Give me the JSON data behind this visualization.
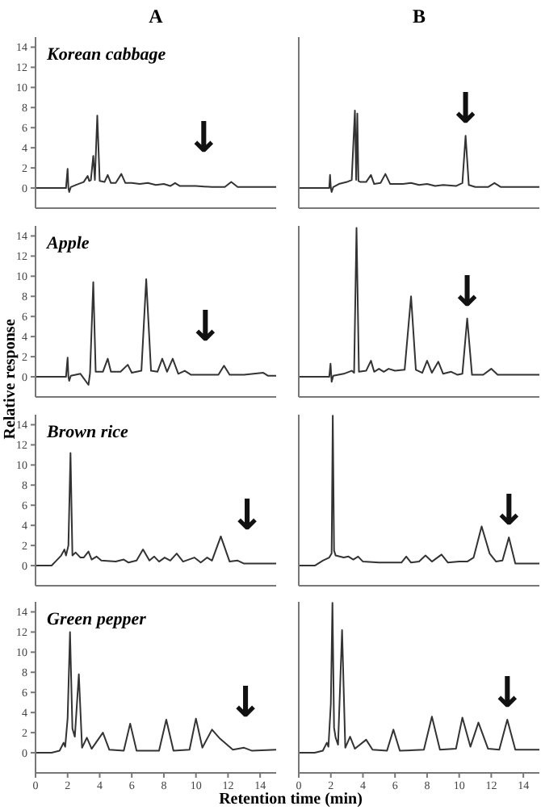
{
  "chart_data": [
    {
      "type": "line",
      "title": "A",
      "annotations": [
        "Korean cabbage",
        "↓"
      ],
      "marker": "none",
      "color": "#333333",
      "xlim": [
        0,
        15
      ],
      "xticks": [
        0,
        2,
        4,
        6,
        8,
        10,
        12,
        14
      ],
      "ylim": [
        -2,
        15
      ],
      "yticks": [
        0,
        2,
        4,
        6,
        8,
        10,
        12,
        14
      ],
      "tick_labels": "y",
      "x": [
        0,
        1.9,
        2.0,
        2.05,
        2.1,
        2.2,
        2.5,
        3.0,
        3.25,
        3.35,
        3.45,
        3.6,
        3.7,
        3.85,
        4.0,
        4.3,
        4.5,
        4.7,
        5.0,
        5.35,
        5.6,
        6.0,
        6.5,
        7.0,
        7.5,
        8.0,
        8.4,
        8.7,
        9.0,
        10.0,
        11.0,
        11.8,
        12.2,
        12.6,
        13.5,
        15
      ],
      "values": [
        0,
        0,
        1.9,
        0,
        -0.4,
        0.1,
        0.3,
        0.6,
        1.2,
        0.7,
        0.8,
        3.2,
        0.8,
        7.2,
        0.7,
        0.6,
        1.3,
        0.5,
        0.5,
        1.4,
        0.5,
        0.5,
        0.4,
        0.5,
        0.3,
        0.4,
        0.2,
        0.5,
        0.2,
        0.2,
        0.1,
        0.1,
        0.6,
        0.1,
        0.1,
        0.1
      ]
    },
    {
      "type": "line",
      "title": "B",
      "annotations": [
        {
          "text": "↓",
          "x": 10.4,
          "y": 5.2
        }
      ],
      "marker": "none",
      "color": "#333333",
      "xlim": [
        0,
        15
      ],
      "xticks": [
        0,
        2,
        4,
        6,
        8,
        10,
        12,
        14
      ],
      "ylim": [
        -2,
        15
      ],
      "yticks": [
        0,
        2,
        4,
        6,
        8,
        10,
        12,
        14
      ],
      "tick_labels": false,
      "x": [
        0,
        1.9,
        1.95,
        2.0,
        2.05,
        2.15,
        2.5,
        3.0,
        3.3,
        3.5,
        3.58,
        3.65,
        3.72,
        3.85,
        4.2,
        4.5,
        4.7,
        5.1,
        5.4,
        5.7,
        6.5,
        7.0,
        7.5,
        8.0,
        8.5,
        9.0,
        9.8,
        10.2,
        10.4,
        10.6,
        11.0,
        11.8,
        12.2,
        12.6,
        13.5,
        15
      ],
      "values": [
        0,
        0,
        1.3,
        0,
        -0.4,
        0.1,
        0.4,
        0.6,
        0.8,
        7.7,
        0.8,
        7.4,
        0.7,
        0.6,
        0.6,
        1.3,
        0.4,
        0.5,
        1.4,
        0.4,
        0.4,
        0.5,
        0.3,
        0.4,
        0.2,
        0.3,
        0.2,
        0.5,
        5.2,
        0.3,
        0.1,
        0.1,
        0.5,
        0.1,
        0.1,
        0.1
      ]
    },
    {
      "type": "line",
      "annotations": [
        "Apple",
        "↓"
      ],
      "marker": "none",
      "color": "#333333",
      "xlim": [
        0,
        15
      ],
      "xticks": [
        0,
        2,
        4,
        6,
        8,
        10,
        12,
        14
      ],
      "ylim": [
        -2,
        15
      ],
      "yticks": [
        0,
        2,
        4,
        6,
        8,
        10,
        12,
        14
      ],
      "tick_labels": "y",
      "x": [
        0,
        1.9,
        2.0,
        2.05,
        2.1,
        2.2,
        2.8,
        3.3,
        3.4,
        3.6,
        3.75,
        4.2,
        4.5,
        4.7,
        5.3,
        5.75,
        6.0,
        6.6,
        6.9,
        7.2,
        7.6,
        7.9,
        8.2,
        8.55,
        8.9,
        9.3,
        9.7,
        10.5,
        11.4,
        11.75,
        12.1,
        13.0,
        14.2,
        14.5,
        15
      ],
      "values": [
        0,
        0,
        1.9,
        0,
        -0.4,
        0.1,
        0.3,
        -0.8,
        0.4,
        9.4,
        0.5,
        0.5,
        1.8,
        0.5,
        0.5,
        1.2,
        0.4,
        0.6,
        9.7,
        0.6,
        0.5,
        1.8,
        0.5,
        1.8,
        0.3,
        0.6,
        0.2,
        0.2,
        0.2,
        1.1,
        0.2,
        0.2,
        0.4,
        0.1,
        0.1
      ]
    },
    {
      "type": "line",
      "annotations": [
        {
          "text": "↓",
          "x": 10.5,
          "y": 5.8
        }
      ],
      "marker": "none",
      "color": "#333333",
      "xlim": [
        0,
        15
      ],
      "xticks": [
        0,
        2,
        4,
        6,
        8,
        10,
        12,
        14
      ],
      "ylim": [
        -2,
        15
      ],
      "yticks": [
        0,
        2,
        4,
        6,
        8,
        10,
        12,
        14
      ],
      "tick_labels": false,
      "x": [
        0,
        1.9,
        1.98,
        2.05,
        2.15,
        2.8,
        3.3,
        3.45,
        3.6,
        3.75,
        4.2,
        4.5,
        4.7,
        5.0,
        5.3,
        5.6,
        6.0,
        6.6,
        7.0,
        7.3,
        7.7,
        8.0,
        8.3,
        8.7,
        9.0,
        9.5,
        9.9,
        10.2,
        10.5,
        10.8,
        11.5,
        12.0,
        12.4,
        13.5,
        15
      ],
      "values": [
        0,
        0,
        1.3,
        -0.5,
        0.1,
        0.3,
        0.6,
        0.4,
        14.8,
        0.5,
        0.6,
        1.6,
        0.5,
        0.8,
        0.5,
        0.8,
        0.6,
        0.7,
        8.0,
        0.7,
        0.4,
        1.6,
        0.4,
        1.5,
        0.3,
        0.5,
        0.2,
        0.3,
        5.8,
        0.2,
        0.2,
        0.8,
        0.2,
        0.2,
        0.2
      ]
    },
    {
      "type": "line",
      "ylabel": "Relative response",
      "annotations": [
        "Brown rice",
        "↓"
      ],
      "marker": "none",
      "color": "#333333",
      "xlim": [
        0,
        15
      ],
      "xticks": [
        0,
        2,
        4,
        6,
        8,
        10,
        12,
        14
      ],
      "ylim": [
        -2,
        15
      ],
      "yticks": [
        0,
        2,
        4,
        6,
        8,
        10,
        12,
        14
      ],
      "tick_labels": "y",
      "x": [
        0,
        1.0,
        1.3,
        1.6,
        1.8,
        1.9,
        2.05,
        2.18,
        2.3,
        2.5,
        2.8,
        3.0,
        3.3,
        3.5,
        3.8,
        4.1,
        5.0,
        5.5,
        5.8,
        6.3,
        6.7,
        7.1,
        7.4,
        7.7,
        8.05,
        8.4,
        8.8,
        9.2,
        9.9,
        10.3,
        10.7,
        11.0,
        11.55,
        12.1,
        12.6,
        13.0,
        15
      ],
      "values": [
        0,
        0,
        0.5,
        1.0,
        1.6,
        1.0,
        2.0,
        11.2,
        1.0,
        1.3,
        0.8,
        0.8,
        1.4,
        0.6,
        0.9,
        0.5,
        0.4,
        0.6,
        0.3,
        0.5,
        1.6,
        0.5,
        0.9,
        0.4,
        0.8,
        0.5,
        1.2,
        0.4,
        0.8,
        0.3,
        0.8,
        0.5,
        2.9,
        0.4,
        0.5,
        0.2,
        0.2
      ]
    },
    {
      "type": "line",
      "annotations": [
        {
          "text": "↓",
          "x": 13.1,
          "y": 2.8
        }
      ],
      "marker": "none",
      "color": "#333333",
      "xlim": [
        0,
        15
      ],
      "xticks": [
        0,
        2,
        4,
        6,
        8,
        10,
        12,
        14
      ],
      "ylim": [
        -2,
        15
      ],
      "yticks": [
        0,
        2,
        4,
        6,
        8,
        10,
        12,
        14
      ],
      "tick_labels": false,
      "x": [
        0,
        1.0,
        1.5,
        1.9,
        2.05,
        2.12,
        2.2,
        2.3,
        2.8,
        3.1,
        3.4,
        3.7,
        4.0,
        5.0,
        6.0,
        6.4,
        6.7,
        7.0,
        7.5,
        7.9,
        8.3,
        8.9,
        9.3,
        10.0,
        10.5,
        10.9,
        11.4,
        11.9,
        12.3,
        12.7,
        13.1,
        13.5,
        15
      ],
      "values": [
        0,
        0,
        0.5,
        0.8,
        1.2,
        14.9,
        1.5,
        1.0,
        0.8,
        0.9,
        0.6,
        0.9,
        0.4,
        0.3,
        0.3,
        0.3,
        0.9,
        0.3,
        0.4,
        1.0,
        0.4,
        1.1,
        0.3,
        0.4,
        0.4,
        0.8,
        3.9,
        1.2,
        0.4,
        0.5,
        2.8,
        0.2,
        0.2
      ]
    },
    {
      "type": "line",
      "xlabel": "Retention time (min)",
      "annotations": [
        "Green pepper",
        "↓"
      ],
      "marker": "none",
      "color": "#333333",
      "xlim": [
        0,
        15
      ],
      "xticks": [
        0,
        2,
        4,
        6,
        8,
        10,
        12,
        14
      ],
      "ylim": [
        -2,
        15
      ],
      "yticks": [
        0,
        2,
        4,
        6,
        8,
        10,
        12,
        14
      ],
      "x": [
        0,
        1.0,
        1.5,
        1.75,
        1.85,
        2.0,
        2.15,
        2.3,
        2.45,
        2.7,
        2.9,
        3.2,
        3.5,
        4.2,
        4.6,
        5.5,
        5.9,
        6.3,
        7.7,
        8.15,
        8.6,
        9.6,
        10.0,
        10.4,
        11.0,
        11.5,
        12.3,
        13.0,
        13.5,
        15
      ],
      "values": [
        0,
        0,
        0.2,
        1.0,
        0.6,
        3.4,
        12.0,
        2.4,
        1.6,
        7.8,
        0.5,
        1.5,
        0.4,
        2.0,
        0.3,
        0.2,
        2.9,
        0.2,
        0.2,
        3.3,
        0.2,
        0.3,
        3.4,
        0.5,
        2.3,
        1.4,
        0.3,
        0.5,
        0.2,
        0.3
      ]
    },
    {
      "type": "line",
      "annotations": [
        {
          "text": "↓",
          "x": 13.0,
          "y": 3.3
        }
      ],
      "marker": "none",
      "color": "#333333",
      "xlim": [
        0,
        15
      ],
      "xticks": [
        0,
        2,
        4,
        6,
        8,
        10,
        12,
        14
      ],
      "ylim": [
        -2,
        15
      ],
      "yticks": [
        0,
        2,
        4,
        6,
        8,
        10,
        12,
        14
      ],
      "tick_labels": "x",
      "x": [
        0,
        1.0,
        1.5,
        1.75,
        1.85,
        2.0,
        2.1,
        2.2,
        2.3,
        2.45,
        2.7,
        2.9,
        3.2,
        3.5,
        4.2,
        4.6,
        5.5,
        5.9,
        6.3,
        7.8,
        8.3,
        8.8,
        9.8,
        10.2,
        10.7,
        11.2,
        11.8,
        12.5,
        13.0,
        13.5,
        15
      ],
      "values": [
        0,
        0,
        0.2,
        1.0,
        0.6,
        4.9,
        14.9,
        2.5,
        1.5,
        0.8,
        12.2,
        0.5,
        1.6,
        0.4,
        1.3,
        0.3,
        0.2,
        2.3,
        0.2,
        0.3,
        3.6,
        0.3,
        0.4,
        3.5,
        0.6,
        3.0,
        0.4,
        0.3,
        3.3,
        0.3,
        0.3
      ]
    }
  ]
}
